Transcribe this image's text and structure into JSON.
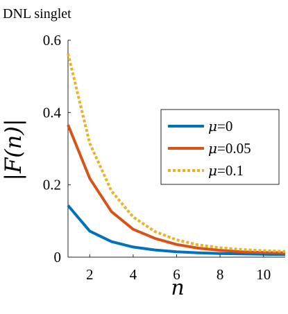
{
  "chart_data": {
    "type": "line",
    "title": "DNL singlet",
    "xlabel": "n",
    "ylabel": "|F(n)|",
    "xlim": [
      1,
      11
    ],
    "ylim": [
      0,
      0.6
    ],
    "xticks": [
      2,
      4,
      6,
      8,
      10
    ],
    "yticks": [
      0,
      0.2,
      0.4,
      0.6
    ],
    "x": [
      1,
      2,
      3,
      4,
      5,
      6,
      7,
      8,
      9,
      10,
      11
    ],
    "series": [
      {
        "name": "μ=0",
        "mu_symbol": "μ",
        "mu_value": "=0",
        "color": "#0072BD",
        "style": "solid",
        "values": [
          0.143,
          0.072,
          0.043,
          0.028,
          0.02,
          0.015,
          0.012,
          0.01,
          0.009,
          0.008,
          0.007
        ]
      },
      {
        "name": "μ=0.05",
        "mu_symbol": "μ",
        "mu_value": "=0.05",
        "color": "#D95319",
        "style": "solid",
        "values": [
          0.366,
          0.218,
          0.126,
          0.077,
          0.052,
          0.035,
          0.025,
          0.019,
          0.015,
          0.013,
          0.012
        ]
      },
      {
        "name": "μ=0.1",
        "mu_symbol": "μ",
        "mu_value": "=0.1",
        "color": "#EDB120",
        "style": "dotted",
        "values": [
          0.563,
          0.315,
          0.183,
          0.111,
          0.071,
          0.048,
          0.034,
          0.026,
          0.021,
          0.018,
          0.016
        ]
      }
    ],
    "legend": "right"
  }
}
